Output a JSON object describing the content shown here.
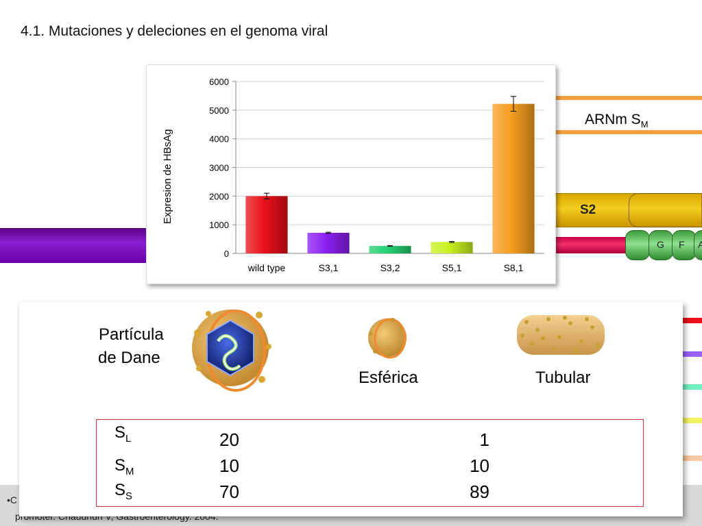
{
  "slide": {
    "title": "4.1. Mutaciones y deleciones en el genoma viral"
  },
  "gene_diagram": {
    "arn_label": "ARNm S",
    "arn_label_sub": "M",
    "s2_label": "S2",
    "segments": [
      "G",
      "F",
      "A"
    ]
  },
  "chart_data": {
    "type": "bar",
    "title": "",
    "xlabel": "",
    "ylabel": "Expresion de HBsAg",
    "ylim": [
      0,
      6000
    ],
    "yticks": [
      0,
      1000,
      2000,
      3000,
      4000,
      5000,
      6000
    ],
    "categories": [
      "wild type",
      "S3,1",
      "S3,2",
      "S5,1",
      "S8,1"
    ],
    "values": [
      2000,
      720,
      260,
      400,
      5220
    ],
    "errors": [
      100,
      20,
      10,
      20,
      260
    ],
    "colors": [
      "#e8101a",
      "#8a1ff0",
      "#22d070",
      "#c8f020",
      "#f59d20"
    ],
    "grid": true
  },
  "particles": {
    "dane_label_line1": "Partícula",
    "dane_label_line2": "de Dane",
    "spherical_label": "Esférica",
    "tubular_label": "Tubular"
  },
  "ratio_table": {
    "rows": [
      {
        "label": "S",
        "sub": "L",
        "dane": "20",
        "spherical": "1"
      },
      {
        "label": "S",
        "sub": "M",
        "dane": "10",
        "spherical": "10"
      },
      {
        "label": "S",
        "sub": "S",
        "dane": "70",
        "spherical": "89"
      }
    ]
  },
  "footer": {
    "line1": "•C",
    "line2": "promoter. Chaudhuri V, Gastroenterology. 2004."
  }
}
